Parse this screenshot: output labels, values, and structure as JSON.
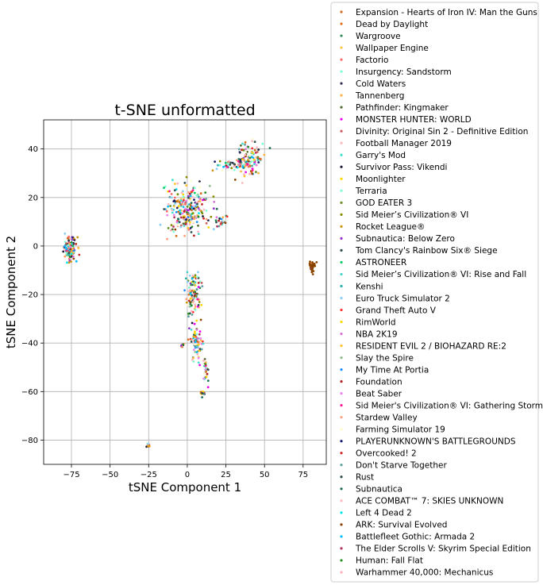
{
  "chart_data": {
    "type": "scatter",
    "title": "t-SNE unformatted",
    "xlabel": "tSNE Component 1",
    "ylabel": "tSNE Component 2",
    "xlim": [
      -93,
      90
    ],
    "ylim": [
      -90,
      52
    ],
    "xticks": [
      -75,
      -50,
      -25,
      0,
      25,
      50,
      75
    ],
    "yticks": [
      -80,
      -60,
      -40,
      -20,
      0,
      20,
      40
    ],
    "xtick_labels": [
      "−75",
      "−50",
      "−25",
      "0",
      "25",
      "50",
      "75"
    ],
    "ytick_labels": [
      "−80",
      "−60",
      "−40",
      "−20",
      "0",
      "20",
      "40"
    ],
    "grid": true,
    "legend_position": "outside-right",
    "clusters": [
      {
        "x": -76,
        "y": -1,
        "spread_x": 3.5,
        "spread_y": 4,
        "points": 120
      },
      {
        "x": 81,
        "y": -8.5,
        "spread_x": 1.2,
        "spread_y": 1.5,
        "points": 50,
        "dominant_color": "#8b4500"
      },
      {
        "x": -25.5,
        "y": -82,
        "spread_x": 1.2,
        "spread_y": 0.6,
        "points": 14
      },
      {
        "x": 40,
        "y": 36,
        "spread_x": 7,
        "spread_y": 5,
        "points": 120
      },
      {
        "x": 27,
        "y": 33,
        "spread_x": 8,
        "spread_y": 2,
        "points": 40
      },
      {
        "x": 0,
        "y": 15,
        "spread_x": 12,
        "spread_y": 8,
        "points": 260
      },
      {
        "x": 22,
        "y": 10,
        "spread_x": 4,
        "spread_y": 2,
        "points": 20
      },
      {
        "x": 4,
        "y": -20,
        "spread_x": 4,
        "spread_y": 8,
        "points": 110
      },
      {
        "x": 6,
        "y": -40,
        "spread_x": 3,
        "spread_y": 6,
        "points": 70
      },
      {
        "x": 12,
        "y": -52,
        "spread_x": 1.5,
        "spread_y": 5,
        "points": 25
      },
      {
        "x": 10,
        "y": -61,
        "spread_x": 1.5,
        "spread_y": 1,
        "points": 10
      },
      {
        "x": -3,
        "y": -41,
        "spread_x": 1,
        "spread_y": 0.6,
        "points": 8
      }
    ],
    "series": [
      {
        "name": "Expansion - Hearts of Iron IV: Man the Guns",
        "color": "#d2691e"
      },
      {
        "name": "Dead by Daylight",
        "color": "#e07020"
      },
      {
        "name": "Wargroove",
        "color": "#2e8b57"
      },
      {
        "name": "Wallpaper Engine",
        "color": "#ffc040"
      },
      {
        "name": "Factorio",
        "color": "#ff6a6a"
      },
      {
        "name": "Insurgency: Sandstorm",
        "color": "#7fffd4"
      },
      {
        "name": "Cold Waters",
        "color": "#2f2f4f"
      },
      {
        "name": "Tannenberg",
        "color": "#ffb347"
      },
      {
        "name": "Pathfinder: Kingmaker",
        "color": "#556b2f"
      },
      {
        "name": "MONSTER HUNTER: WORLD",
        "color": "#ee00ee"
      },
      {
        "name": "Divinity: Original Sin 2 - Definitive Edition",
        "color": "#cd5c5c"
      },
      {
        "name": "Football Manager 2019",
        "color": "#ffb6c1"
      },
      {
        "name": "Garry's Mod",
        "color": "#40e0d0"
      },
      {
        "name": "Survivor Pass: Vikendi",
        "color": "#1a1a3a"
      },
      {
        "name": "Moonlighter",
        "color": "#ffd700"
      },
      {
        "name": "Terraria",
        "color": "#7fffd4"
      },
      {
        "name": "GOD EATER 3",
        "color": "#6b8e23"
      },
      {
        "name": "Sid Meier’s Civilization® VI",
        "color": "#8b8b00"
      },
      {
        "name": "Rocket League®",
        "color": "#cd950c"
      },
      {
        "name": "Subnautica: Below Zero",
        "color": "#9932cc"
      },
      {
        "name": "Tom Clancy's Rainbow Six® Siege",
        "color": "#2f4f4f"
      },
      {
        "name": "ASTRONEER",
        "color": "#00cd66"
      },
      {
        "name": "Sid Meier’s Civilization® VI: Rise and Fall",
        "color": "#48d1cc"
      },
      {
        "name": "Kenshi",
        "color": "#20b2aa"
      },
      {
        "name": "Euro Truck Simulator 2",
        "color": "#87cefa"
      },
      {
        "name": "Grand Theft Auto V",
        "color": "#ff3030"
      },
      {
        "name": "RimWorld",
        "color": "#ffd700"
      },
      {
        "name": "NBA 2K19",
        "color": "#da70d6"
      },
      {
        "name": "RESIDENT EVIL 2 / BIOHAZARD RE:2",
        "color": "#ffc125"
      },
      {
        "name": "Slay the Spire",
        "color": "#8fbc8f"
      },
      {
        "name": "My Time At Portia",
        "color": "#1e90ff"
      },
      {
        "name": "Foundation",
        "color": "#b22222"
      },
      {
        "name": "Beat Saber",
        "color": "#ee82ee"
      },
      {
        "name": "Sid Meier's Civilization® VI: Gathering Storm",
        "color": "#ff1493"
      },
      {
        "name": "Stardew Valley",
        "color": "#ffa07a"
      },
      {
        "name": "Farming Simulator 19",
        "color": "#fffacd"
      },
      {
        "name": "PLAYERUNKNOWN'S BATTLEGROUNDS",
        "color": "#191970"
      },
      {
        "name": "Overcooked! 2",
        "color": "#cd2626"
      },
      {
        "name": "Don't Starve Together",
        "color": "#5f9ea0"
      },
      {
        "name": "Rust",
        "color": "#2f4f4f"
      },
      {
        "name": "Subnautica",
        "color": "#1c6b5a"
      },
      {
        "name": "ACE COMBAT™ 7: SKIES UNKNOWN",
        "color": "#ffb6c1"
      },
      {
        "name": "Left 4 Dead 2",
        "color": "#00e5ee"
      },
      {
        "name": "ARK: Survival Evolved",
        "color": "#8b4500"
      },
      {
        "name": "Battlefleet Gothic: Armada 2",
        "color": "#00bfff"
      },
      {
        "name": "The Elder Scrolls V: Skyrim Special Edition",
        "color": "#b03060"
      },
      {
        "name": "Human: Fall Flat",
        "color": "#228b22"
      },
      {
        "name": "Warhammer 40,000: Mechanicus",
        "color": "#ffaeb9"
      }
    ]
  }
}
